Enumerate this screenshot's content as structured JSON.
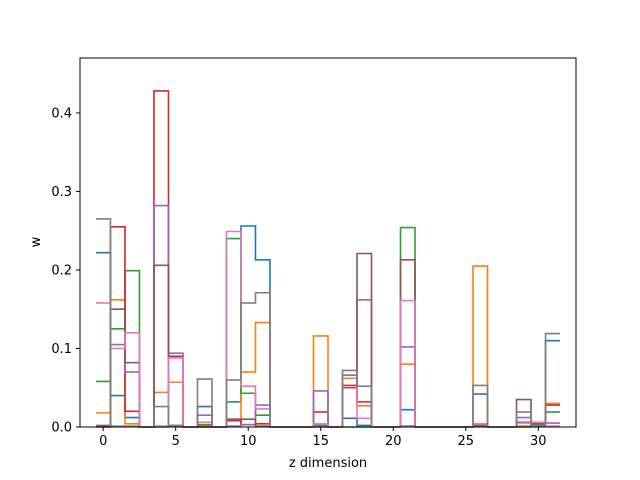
{
  "chart_data": {
    "type": "step",
    "xlabel": "z dimension",
    "ylabel": "w",
    "xlim": [
      -1.6,
      32.6
    ],
    "ylim": [
      0,
      0.47
    ],
    "x_ticks": [
      0,
      5,
      10,
      15,
      20,
      25,
      30
    ],
    "y_ticks": [
      0.0,
      0.1,
      0.2,
      0.3,
      0.4
    ],
    "x_tick_labels": [
      "0",
      "5",
      "10",
      "15",
      "20",
      "25",
      "30"
    ],
    "y_tick_labels": [
      "0.0",
      "0.1",
      "0.2",
      "0.3",
      "0.4"
    ],
    "grid": false,
    "x": [
      0,
      1,
      2,
      3,
      4,
      5,
      6,
      7,
      8,
      9,
      10,
      11,
      12,
      13,
      14,
      15,
      16,
      17,
      18,
      19,
      20,
      21,
      22,
      23,
      24,
      25,
      26,
      27,
      28,
      29,
      30,
      31
    ],
    "series": [
      {
        "color": "#1f77b4",
        "values": [
          0.222,
          0.04,
          0.012,
          0,
          0.001,
          0.001,
          0,
          0.026,
          0,
          0.032,
          0.256,
          0.213,
          0,
          0,
          0,
          0.002,
          0,
          0.011,
          0.002,
          0,
          0,
          0.022,
          0,
          0,
          0,
          0,
          0.042,
          0,
          0,
          0.001,
          0.003,
          0.11
        ]
      },
      {
        "color": "#ff7f0e",
        "values": [
          0.018,
          0.162,
          0.004,
          0,
          0.044,
          0.057,
          0,
          0.001,
          0,
          0.001,
          0.07,
          0.133,
          0,
          0,
          0,
          0.116,
          0,
          0.062,
          0.027,
          0,
          0,
          0.08,
          0,
          0,
          0,
          0,
          0.205,
          0,
          0,
          0.001,
          0.001,
          0.03
        ]
      },
      {
        "color": "#2ca02c",
        "values": [
          0.058,
          0.125,
          0.199,
          0,
          0,
          0.001,
          0,
          0.003,
          0,
          0.24,
          0.043,
          0.015,
          0,
          0,
          0,
          0,
          0,
          0,
          0,
          0,
          0,
          0.254,
          0,
          0,
          0,
          0,
          0.001,
          0,
          0,
          0,
          0.004,
          0.019
        ]
      },
      {
        "color": "#d62728",
        "values": [
          0,
          0.255,
          0.02,
          0,
          0.428,
          0.09,
          0,
          0,
          0,
          0.008,
          0.003,
          0.004,
          0,
          0,
          0,
          0.019,
          0,
          0.053,
          0.032,
          0,
          0,
          0.001,
          0,
          0,
          0,
          0,
          0.002,
          0,
          0,
          0.006,
          0.005,
          0.028
        ]
      },
      {
        "color": "#9467bd",
        "values": [
          0.002,
          0.105,
          0.07,
          0,
          0.282,
          0.094,
          0,
          0.015,
          0,
          0.001,
          0.003,
          0.028,
          0,
          0,
          0,
          0.046,
          0,
          0.072,
          0.162,
          0,
          0,
          0.102,
          0,
          0,
          0,
          0,
          0.002,
          0,
          0,
          0.012,
          0.002,
          0.005
        ]
      },
      {
        "color": "#8c564b",
        "values": [
          0.001,
          0.15,
          0.082,
          0,
          0.206,
          0.002,
          0,
          0,
          0,
          0.01,
          0.01,
          0.001,
          0,
          0,
          0,
          0.001,
          0,
          0.05,
          0.221,
          0,
          0,
          0.213,
          0,
          0,
          0,
          0,
          0.001,
          0,
          0,
          0.035,
          0.001,
          0.001
        ]
      },
      {
        "color": "#e377c2",
        "values": [
          0.158,
          0.1,
          0.12,
          0,
          0.001,
          0.088,
          0,
          0.006,
          0,
          0.249,
          0.052,
          0.023,
          0,
          0,
          0,
          0.004,
          0,
          0.066,
          0.011,
          0,
          0,
          0.161,
          0,
          0,
          0,
          0,
          0.004,
          0,
          0,
          0.005,
          0.006,
          0.001
        ]
      },
      {
        "color": "#7f7f7f",
        "values": [
          0.265,
          0.001,
          0.001,
          0,
          0.026,
          0.002,
          0,
          0.061,
          0,
          0.06,
          0.158,
          0.171,
          0,
          0,
          0,
          0.001,
          0,
          0.066,
          0.052,
          0,
          0,
          0.001,
          0,
          0,
          0,
          0,
          0.053,
          0,
          0,
          0.019,
          0.001,
          0.119
        ]
      }
    ]
  }
}
